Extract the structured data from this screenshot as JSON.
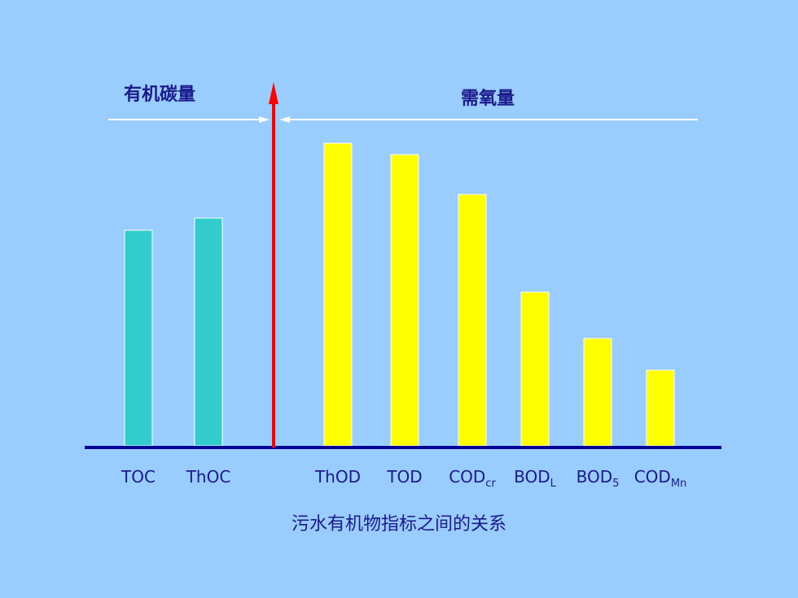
{
  "chart_data": {
    "type": "bar",
    "title": "污水有机物指标之间的关系",
    "groups": [
      {
        "label": "有机碳量",
        "categories": [
          "TOC",
          "ThOC"
        ],
        "color": "#33CCCC"
      },
      {
        "label": "需氧量",
        "categories": [
          "ThOD",
          "TOD",
          "CODcr",
          "BODL",
          "BOD5",
          "CODMn"
        ],
        "color": "#FFFF00"
      }
    ],
    "categories": [
      {
        "label": "TOC",
        "sub": "",
        "value": 265
      },
      {
        "label": "ThOC",
        "sub": "",
        "value": 280
      },
      {
        "label": "ThOD",
        "sub": "",
        "value": 372
      },
      {
        "label": "TOD",
        "sub": "",
        "value": 358
      },
      {
        "label": "COD",
        "sub": "cr",
        "value": 309
      },
      {
        "label": "BOD",
        "sub": "L",
        "value": 189
      },
      {
        "label": "BOD",
        "sub": "5",
        "value": 132
      },
      {
        "label": "COD",
        "sub": "Mn",
        "value": 93
      }
    ],
    "ylim": [
      0,
      400
    ],
    "axis_color": "#000099",
    "divider_color": "#FF0000",
    "arrow_color": "#FFFFFF"
  }
}
